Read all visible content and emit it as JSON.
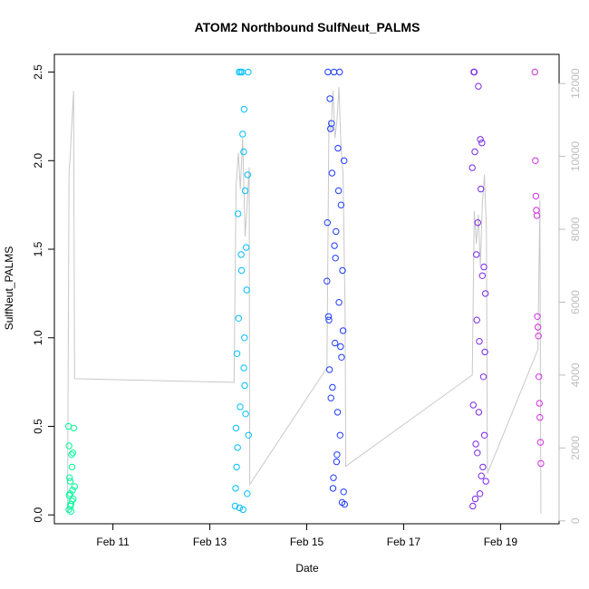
{
  "chart_data": {
    "type": "scatter",
    "title": "ATOM2 Northbound SulfNeut_PALMS",
    "xlabel": "Date",
    "ylabel": "SulfNeut_PALMS",
    "x_ticks": [
      "Feb 11",
      "Feb 13",
      "Feb 15",
      "Feb 17",
      "Feb 19"
    ],
    "x_range": [
      "2017-02-09 19:00",
      "2017-02-20 05:00"
    ],
    "y_ticks": [
      "0.0",
      "0.5",
      "1.0",
      "1.5",
      "2.0",
      "2.5"
    ],
    "ylim": [
      -0.05,
      2.6
    ],
    "right_axis_ticks": [
      "0",
      "2000",
      "4000",
      "6000",
      "8000",
      "10000",
      "12000"
    ],
    "right_axis_range": [
      -80,
      12800
    ],
    "grid": false,
    "series": [
      {
        "color": "#00FA9A",
        "x": [
          "2017-02-10 02:00",
          "2017-02-10 02:15",
          "2017-02-10 02:30",
          "2017-02-10 02:45",
          "2017-02-10 03:00",
          "2017-02-10 03:15",
          "2017-02-10 03:30",
          "2017-02-10 03:45",
          "2017-02-10 04:00",
          "2017-02-10 04:20",
          "2017-02-10 04:40",
          "2017-02-10 05:00",
          "2017-02-10 02:10",
          "2017-02-10 02:50",
          "2017-02-10 03:40",
          "2017-02-10 04:10",
          "2017-02-10 02:20",
          "2017-02-10 03:10"
        ],
        "y": [
          0.5,
          0.39,
          0.21,
          0.12,
          0.05,
          0.02,
          0.34,
          0.27,
          0.14,
          0.09,
          0.49,
          0.16,
          0.03,
          0.19,
          0.08,
          0.35,
          0.11,
          0.06
        ]
      },
      {
        "color": "#00BFFF",
        "x": [
          "2017-02-13 12:30",
          "2017-02-13 13:00",
          "2017-02-13 13:30",
          "2017-02-13 14:00",
          "2017-02-13 14:30",
          "2017-02-13 15:00",
          "2017-02-13 15:30",
          "2017-02-13 16:00",
          "2017-02-13 16:30",
          "2017-02-13 17:00",
          "2017-02-13 17:30",
          "2017-02-13 18:00",
          "2017-02-13 18:30",
          "2017-02-13 19:00",
          "2017-02-13 13:15",
          "2017-02-13 14:15",
          "2017-02-13 15:15",
          "2017-02-13 16:15",
          "2017-02-13 17:15",
          "2017-02-13 18:15",
          "2017-02-13 14:45",
          "2017-02-13 15:45",
          "2017-02-13 16:45",
          "2017-02-13 17:45",
          "2017-02-13 18:45",
          "2017-02-13 13:45",
          "2017-02-13 12:45",
          "2017-02-13 19:10",
          "2017-02-13 17:10",
          "2017-02-13 16:50"
        ],
        "y": [
          0.05,
          0.49,
          0.91,
          1.7,
          2.5,
          0.61,
          1.47,
          2.5,
          0.03,
          2.29,
          1.83,
          1.51,
          0.12,
          2.5,
          0.27,
          1.11,
          2.5,
          2.15,
          0.73,
          1.27,
          0.04,
          1.38,
          2.05,
          0.57,
          1.92,
          0.38,
          0.15,
          0.45,
          1.0,
          0.83
        ]
      },
      {
        "color": "#1E3CFF",
        "x": [
          "2017-02-15 10:00",
          "2017-02-15 10:30",
          "2017-02-15 11:00",
          "2017-02-15 11:30",
          "2017-02-15 12:00",
          "2017-02-15 12:30",
          "2017-02-15 13:00",
          "2017-02-15 13:30",
          "2017-02-15 14:00",
          "2017-02-15 14:30",
          "2017-02-15 15:00",
          "2017-02-15 15:30",
          "2017-02-15 16:00",
          "2017-02-15 16:30",
          "2017-02-15 17:00",
          "2017-02-15 17:30",
          "2017-02-15 18:00",
          "2017-02-15 18:30",
          "2017-02-15 10:15",
          "2017-02-15 11:15",
          "2017-02-15 12:15",
          "2017-02-15 13:15",
          "2017-02-15 14:15",
          "2017-02-15 15:15",
          "2017-02-15 16:15",
          "2017-02-15 17:15",
          "2017-02-15 18:15",
          "2017-02-15 10:45",
          "2017-02-15 11:45",
          "2017-02-15 12:45",
          "2017-02-15 13:45",
          "2017-02-15 14:45",
          "2017-02-15 15:45",
          "2017-02-15 16:45",
          "2017-02-15 17:45",
          "2017-02-15 18:45"
        ],
        "y": [
          1.32,
          2.5,
          1.1,
          2.35,
          0.66,
          1.93,
          0.15,
          2.5,
          0.97,
          1.6,
          0.34,
          2.07,
          1.2,
          0.45,
          1.75,
          0.07,
          1.04,
          2.0,
          1.65,
          0.82,
          2.21,
          0.21,
          1.45,
          0.58,
          2.5,
          0.89,
          0.13,
          1.12,
          2.18,
          0.72,
          1.52,
          0.3,
          1.83,
          0.95,
          1.38,
          0.06
        ]
      },
      {
        "color": "#7B28E8",
        "x": [
          "2017-02-18 10:00",
          "2017-02-18 10:30",
          "2017-02-18 11:00",
          "2017-02-18 11:30",
          "2017-02-18 12:00",
          "2017-02-18 12:30",
          "2017-02-18 13:00",
          "2017-02-18 13:30",
          "2017-02-18 14:00",
          "2017-02-18 14:30",
          "2017-02-18 15:00",
          "2017-02-18 15:30",
          "2017-02-18 16:00",
          "2017-02-18 16:30",
          "2017-02-18 10:15",
          "2017-02-18 11:15",
          "2017-02-18 12:15",
          "2017-02-18 13:15",
          "2017-02-18 14:15",
          "2017-02-18 15:15",
          "2017-02-18 16:15",
          "2017-02-18 10:45",
          "2017-02-18 11:45",
          "2017-02-18 12:45",
          "2017-02-18 13:45",
          "2017-02-18 14:45",
          "2017-02-18 15:45",
          "2017-02-18 16:45"
        ],
        "y": [
          1.96,
          0.62,
          2.5,
          0.09,
          1.47,
          0.35,
          2.42,
          0.98,
          2.12,
          0.22,
          1.35,
          0.78,
          0.45,
          1.25,
          0.05,
          2.05,
          1.1,
          0.58,
          1.84,
          0.27,
          0.92,
          2.5,
          0.4,
          1.65,
          0.12,
          2.1,
          1.4,
          0.19
        ]
      },
      {
        "color": "#D030E0",
        "x": [
          "2017-02-19 17:00",
          "2017-02-19 17:15",
          "2017-02-19 17:30",
          "2017-02-19 17:45",
          "2017-02-19 18:00",
          "2017-02-19 18:15",
          "2017-02-19 18:30",
          "2017-02-19 18:45",
          "2017-02-19 19:00",
          "2017-02-19 19:15",
          "2017-02-19 19:30",
          "2017-02-19 19:45",
          "2017-02-19 20:00"
        ],
        "y": [
          2.5,
          2.0,
          1.8,
          1.72,
          1.69,
          1.12,
          1.06,
          1.01,
          0.78,
          0.63,
          0.55,
          0.41,
          0.29
        ]
      }
    ],
    "altitude_series": {
      "color": "#c8c8c8",
      "x": [
        "2017-02-10 01:30",
        "2017-02-10 02:15",
        "2017-02-10 02:50",
        "2017-02-10 03:25",
        "2017-02-10 04:05",
        "2017-02-10 04:30",
        "2017-02-10 05:00",
        "2017-02-13 12:00",
        "2017-02-13 13:00",
        "2017-02-13 14:10",
        "2017-02-13 15:05",
        "2017-02-13 16:15",
        "2017-02-13 17:30",
        "2017-02-13 18:30",
        "2017-02-13 19:30",
        "2017-02-13 19:45",
        "2017-02-15 10:00",
        "2017-02-15 11:00",
        "2017-02-15 12:00",
        "2017-02-15 13:00",
        "2017-02-15 14:00",
        "2017-02-15 15:00",
        "2017-02-15 16:00",
        "2017-02-15 17:00",
        "2017-02-15 18:00",
        "2017-02-15 19:00",
        "2017-02-15 19:20",
        "2017-02-18 10:00",
        "2017-02-18 11:00",
        "2017-02-18 12:00",
        "2017-02-18 13:00",
        "2017-02-18 14:00",
        "2017-02-18 15:00",
        "2017-02-18 16:00",
        "2017-02-18 17:00",
        "2017-02-18 17:30",
        "2017-02-19 18:30",
        "2017-02-19 19:30",
        "2017-02-19 20:00"
      ],
      "y": [
        200,
        9600,
        10000,
        10700,
        11300,
        11800,
        3900,
        3800,
        9200,
        10100,
        9100,
        10500,
        7800,
        8700,
        9700,
        1000,
        4200,
        11000,
        10700,
        11800,
        10500,
        11000,
        11900,
        10200,
        9500,
        5800,
        1500,
        4000,
        8500,
        7600,
        8400,
        7000,
        8700,
        9500,
        8000,
        1300,
        4700,
        8800,
        200
      ]
    }
  }
}
